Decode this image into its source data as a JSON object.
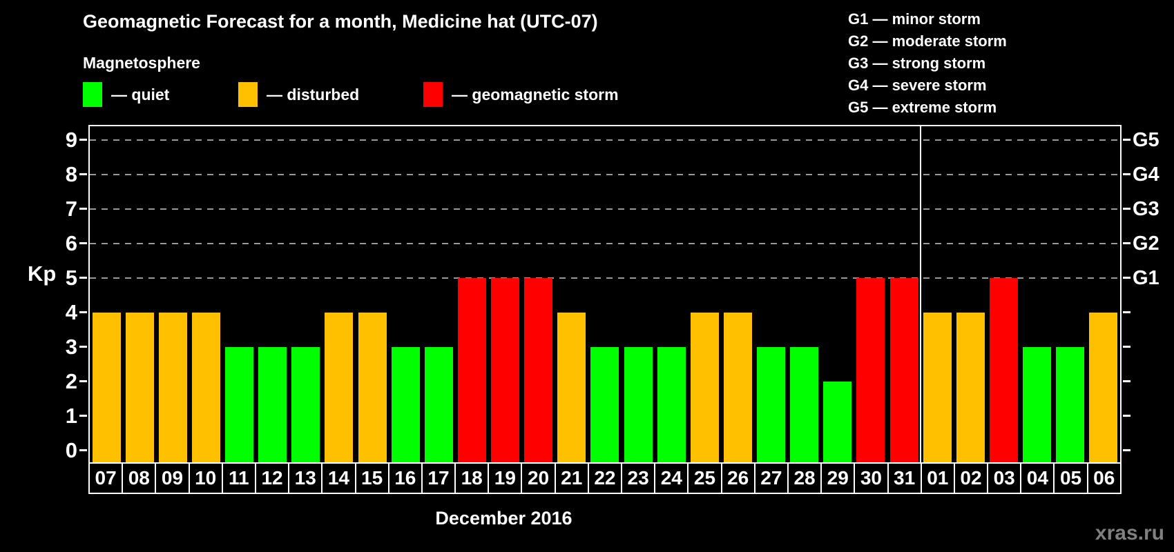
{
  "header": {
    "title": "Geomagnetic Forecast for a month, Medicine hat (UTC-07)",
    "legend_title": "Magnetosphere",
    "legend": [
      {
        "key": "quiet",
        "label": "— quiet"
      },
      {
        "key": "disturbed",
        "label": "— disturbed"
      },
      {
        "key": "storm",
        "label": "— geomagnetic storm"
      }
    ],
    "g_scale": [
      "G1 — minor storm",
      "G2 — moderate storm",
      "G3 — strong storm",
      "G4 — severe storm",
      "G5 — extreme storm"
    ]
  },
  "colors": {
    "quiet": "#00ff00",
    "disturbed": "#ffc000",
    "storm": "#ff0000",
    "grid": "#9a9a9a",
    "axis": "#ffffff",
    "background": "#000000",
    "watermark": "#808080"
  },
  "chart_data": {
    "type": "bar",
    "title": "Geomagnetic Forecast for a month, Medicine hat (UTC-07)",
    "ylabel": "Kp",
    "xlabel": "December 2016",
    "ylim": [
      0,
      9.4
    ],
    "yticks": [
      0,
      1,
      2,
      3,
      4,
      5,
      6,
      7,
      8,
      9
    ],
    "gridlines_at": [
      5,
      6,
      7,
      8,
      9
    ],
    "right_axis": [
      {
        "kp": 5,
        "label": "G1"
      },
      {
        "kp": 6,
        "label": "G2"
      },
      {
        "kp": 7,
        "label": "G3"
      },
      {
        "kp": 8,
        "label": "G4"
      },
      {
        "kp": 9,
        "label": "G5"
      }
    ],
    "month_boundary_after_index": 24,
    "bars": [
      {
        "day": "07",
        "kp": 4,
        "state": "disturbed"
      },
      {
        "day": "08",
        "kp": 4,
        "state": "disturbed"
      },
      {
        "day": "09",
        "kp": 4,
        "state": "disturbed"
      },
      {
        "day": "10",
        "kp": 4,
        "state": "disturbed"
      },
      {
        "day": "11",
        "kp": 3,
        "state": "quiet"
      },
      {
        "day": "12",
        "kp": 3,
        "state": "quiet"
      },
      {
        "day": "13",
        "kp": 3,
        "state": "quiet"
      },
      {
        "day": "14",
        "kp": 4,
        "state": "disturbed"
      },
      {
        "day": "15",
        "kp": 4,
        "state": "disturbed"
      },
      {
        "day": "16",
        "kp": 3,
        "state": "quiet"
      },
      {
        "day": "17",
        "kp": 3,
        "state": "quiet"
      },
      {
        "day": "18",
        "kp": 5,
        "state": "storm"
      },
      {
        "day": "19",
        "kp": 5,
        "state": "storm"
      },
      {
        "day": "20",
        "kp": 5,
        "state": "storm"
      },
      {
        "day": "21",
        "kp": 4,
        "state": "disturbed"
      },
      {
        "day": "22",
        "kp": 3,
        "state": "quiet"
      },
      {
        "day": "23",
        "kp": 3,
        "state": "quiet"
      },
      {
        "day": "24",
        "kp": 3,
        "state": "quiet"
      },
      {
        "day": "25",
        "kp": 4,
        "state": "disturbed"
      },
      {
        "day": "26",
        "kp": 4,
        "state": "disturbed"
      },
      {
        "day": "27",
        "kp": 3,
        "state": "quiet"
      },
      {
        "day": "28",
        "kp": 3,
        "state": "quiet"
      },
      {
        "day": "29",
        "kp": 2,
        "state": "quiet"
      },
      {
        "day": "30",
        "kp": 5,
        "state": "storm"
      },
      {
        "day": "31",
        "kp": 5,
        "state": "storm"
      },
      {
        "day": "01",
        "kp": 4,
        "state": "disturbed"
      },
      {
        "day": "02",
        "kp": 4,
        "state": "disturbed"
      },
      {
        "day": "03",
        "kp": 5,
        "state": "storm"
      },
      {
        "day": "04",
        "kp": 3,
        "state": "quiet"
      },
      {
        "day": "05",
        "kp": 3,
        "state": "quiet"
      },
      {
        "day": "06",
        "kp": 4,
        "state": "disturbed"
      }
    ]
  },
  "footer": {
    "month_label": "December 2016",
    "watermark": "xras.ru"
  }
}
